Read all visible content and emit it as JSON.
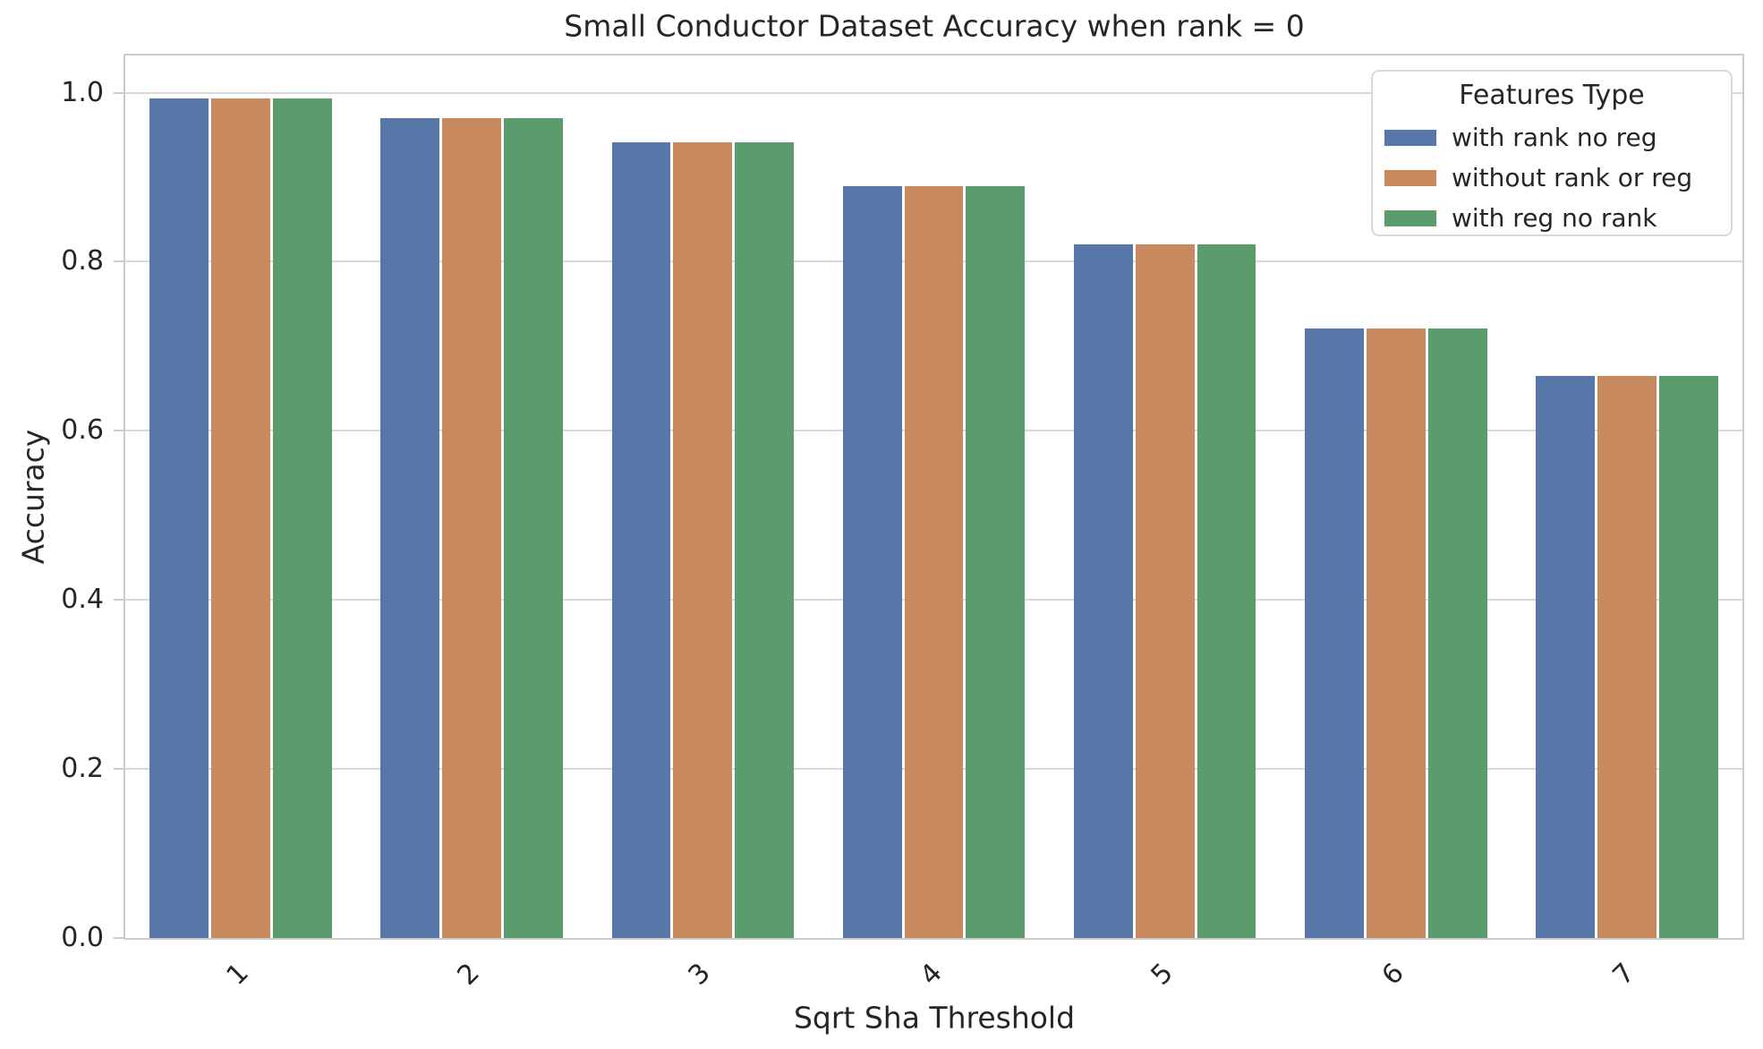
{
  "chart_data": {
    "type": "bar",
    "title": "Small Conductor Dataset Accuracy when rank = 0",
    "xlabel": "Sqrt Sha Threshold",
    "ylabel": "Accuracy",
    "categories": [
      "1",
      "2",
      "3",
      "4",
      "5",
      "6",
      "7"
    ],
    "series": [
      {
        "name": "with rank no reg",
        "color": "#5677A8",
        "values": [
          0.993,
          0.97,
          0.941,
          0.889,
          0.821,
          0.721,
          0.665
        ]
      },
      {
        "name": "without rank or reg",
        "color": "#C9895F",
        "values": [
          0.993,
          0.97,
          0.941,
          0.889,
          0.821,
          0.721,
          0.665
        ]
      },
      {
        "name": "with reg no rank",
        "color": "#5A9C6C",
        "values": [
          0.993,
          0.97,
          0.941,
          0.889,
          0.821,
          0.721,
          0.665
        ]
      }
    ],
    "ylim": [
      0,
      1.044
    ],
    "yticks": [
      "0.0",
      "0.2",
      "0.4",
      "0.6",
      "0.8",
      "1.0"
    ],
    "grid": true,
    "legend": {
      "title": "Features Type",
      "position": "upper right"
    }
  },
  "colors": {
    "grid": "#d9d9d9",
    "spine": "#cccccc",
    "text": "#262626",
    "background": "#ffffff"
  }
}
